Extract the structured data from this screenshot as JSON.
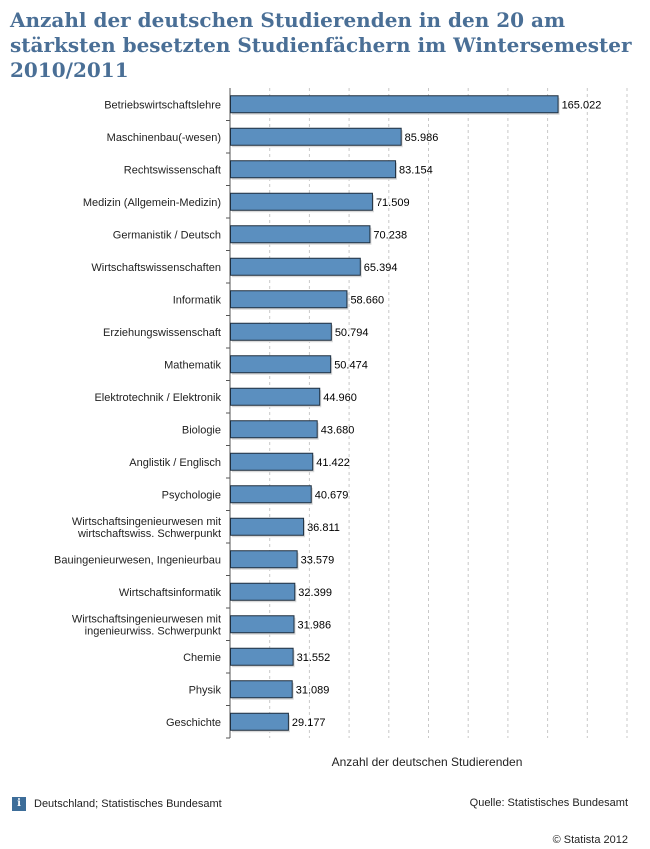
{
  "chart_data": {
    "type": "bar",
    "orientation": "horizontal",
    "title": "Anzahl der deutschen Studierenden in den 20 am stärksten besetzten Studienfächern im Wintersemester 2010/2011",
    "xlabel": "Anzahl der deutschen Studierenden",
    "ylabel": "",
    "xlim": [
      0,
      200000
    ],
    "grid": "vertical-dashed",
    "bar_color": "#5b8fbf",
    "bar_border_color": "#1f2f3f",
    "categories": [
      [
        "Betriebswirtschaftslehre"
      ],
      [
        "Maschinenbau(-wesen)"
      ],
      [
        "Rechtswissenschaft"
      ],
      [
        "Medizin (Allgemein-Medizin)"
      ],
      [
        "Germanistik / Deutsch"
      ],
      [
        "Wirtschaftswissenschaften"
      ],
      [
        "Informatik"
      ],
      [
        "Erziehungswissenschaft"
      ],
      [
        "Mathematik"
      ],
      [
        "Elektrotechnik / Elektronik"
      ],
      [
        "Biologie"
      ],
      [
        "Anglistik / Englisch"
      ],
      [
        "Psychologie"
      ],
      [
        "Wirtschaftsingenieurwesen mit",
        "wirtschaftswiss. Schwerpunkt"
      ],
      [
        "Bauingenieurwesen, Ingenieurbau"
      ],
      [
        "Wirtschaftsinformatik"
      ],
      [
        "Wirtschaftsingenieurwesen mit",
        "ingenieurwiss. Schwerpunkt"
      ],
      [
        "Chemie"
      ],
      [
        "Physik"
      ],
      [
        "Geschichte"
      ]
    ],
    "values": [
      165022,
      85986,
      83154,
      71509,
      70238,
      65394,
      58660,
      50794,
      50474,
      44960,
      43680,
      41422,
      40679,
      36811,
      33579,
      32399,
      31986,
      31552,
      31089,
      29177
    ],
    "value_labels": [
      "165.022",
      "85.986",
      "83.154",
      "71.509",
      "70.238",
      "65.394",
      "58.660",
      "50.794",
      "50.474",
      "44.960",
      "43.680",
      "41.422",
      "40.679",
      "36.811",
      "33.579",
      "32.399",
      "31.986",
      "31.552",
      "31.089",
      "29.177"
    ]
  },
  "footer": {
    "info_icon": "i",
    "region_source": "Deutschland; Statistisches Bundesamt",
    "source": "Quelle: Statistisches Bundesamt",
    "copyright": "© Statista 2012"
  }
}
